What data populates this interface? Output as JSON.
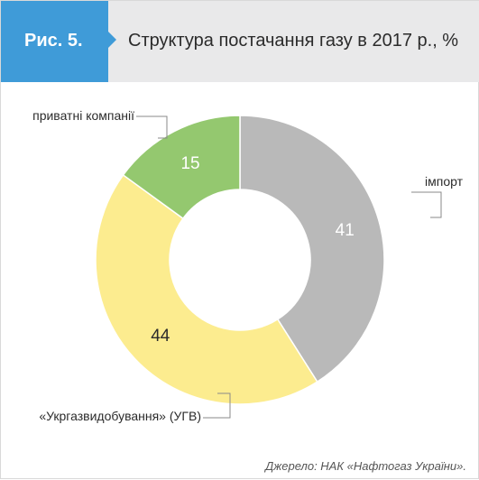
{
  "header": {
    "figure_label": "Рис. 5.",
    "title": "Структура постачання газу в 2017 р., %"
  },
  "source": "Джерело: НАК «Нафтогаз України».",
  "colors": {
    "header_bg": "#e9e9ea",
    "figure_tab": "#3f9bd8"
  },
  "chart_data": {
    "type": "pie",
    "donut": true,
    "slices": [
      {
        "label": "імпорт",
        "value": 41,
        "color": "#b9b9b9"
      },
      {
        "label": "«Укргазвидобування» (УГВ)",
        "value": 44,
        "color": "#fcec8f"
      },
      {
        "label": "приватні компанії",
        "value": 15,
        "color": "#94c86f"
      }
    ],
    "start": "12 o'clock",
    "direction": "clockwise",
    "legend": "callout labels"
  }
}
